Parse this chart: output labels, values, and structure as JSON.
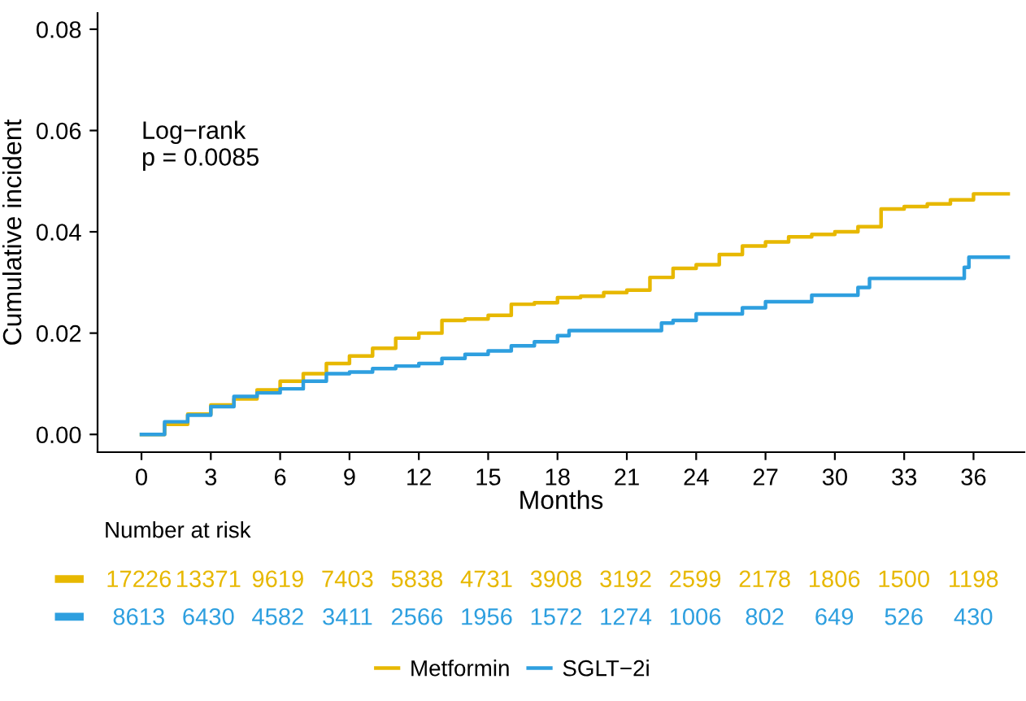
{
  "chart_data": [
    {
      "type": "step",
      "xlabel": "Months",
      "ylabel": "Cumulative incident",
      "xlim": [
        -1.9,
        38.2
      ],
      "ylim": [
        -0.0035,
        0.0832
      ],
      "xticks": [
        0,
        3,
        6,
        9,
        12,
        15,
        18,
        21,
        24,
        27,
        30,
        33,
        36
      ],
      "yticks": [
        {
          "value": 0,
          "label": "0.00"
        },
        {
          "value": 0.02,
          "label": "0.02"
        },
        {
          "value": 0.04,
          "label": "0.04"
        },
        {
          "value": 0.06,
          "label": "0.06"
        },
        {
          "value": 0.08,
          "label": "0.08"
        }
      ],
      "grid": false,
      "legend": "bottom",
      "annotations": [
        "Log−rank\np = 0.0085"
      ],
      "series": [
        {
          "name": "Metformin",
          "color": "#e7b800",
          "x": [
            0,
            1,
            2,
            3,
            4,
            5,
            6,
            7,
            8,
            9,
            10,
            11,
            12,
            13,
            14,
            15,
            16,
            17,
            18,
            19,
            20,
            21,
            22,
            23,
            24,
            25,
            26,
            27,
            28,
            29,
            30,
            31,
            32,
            33,
            34,
            35,
            36,
            37.5
          ],
          "values": [
            0,
            0.002,
            0.004,
            0.0058,
            0.007,
            0.0088,
            0.0105,
            0.012,
            0.014,
            0.0155,
            0.017,
            0.019,
            0.02,
            0.0225,
            0.0228,
            0.0235,
            0.0257,
            0.026,
            0.027,
            0.0273,
            0.028,
            0.0285,
            0.031,
            0.0328,
            0.0335,
            0.0355,
            0.0372,
            0.038,
            0.039,
            0.0395,
            0.04,
            0.041,
            0.0445,
            0.045,
            0.0455,
            0.0463,
            0.0475,
            0.0475
          ]
        },
        {
          "name": "SGLT−2i",
          "color": "#2e9fdf",
          "x": [
            0,
            1,
            2,
            3,
            4,
            5,
            6,
            7,
            8,
            9,
            10,
            11,
            12,
            13,
            14,
            15,
            16,
            17,
            18,
            18.5,
            22,
            22.5,
            23,
            24,
            26,
            27,
            29,
            31,
            31.5,
            35.5,
            35.6,
            35.8,
            37.5
          ],
          "values": [
            0,
            0.0025,
            0.0038,
            0.0055,
            0.0075,
            0.0082,
            0.009,
            0.0105,
            0.012,
            0.0123,
            0.013,
            0.0135,
            0.014,
            0.015,
            0.0158,
            0.0165,
            0.0175,
            0.0183,
            0.0195,
            0.0205,
            0.0205,
            0.022,
            0.0225,
            0.0238,
            0.025,
            0.0262,
            0.0275,
            0.029,
            0.0308,
            0.0308,
            0.033,
            0.035,
            0.035
          ]
        }
      ]
    },
    {
      "type": "heatmap",
      "title": "Number at risk",
      "data_labels": true,
      "categories": [
        null,
        null,
        null,
        null,
        null,
        null,
        null,
        null,
        null,
        null,
        null,
        null,
        null
      ],
      "y_categories": [
        null,
        null
      ],
      "colors": [
        "#e7b800",
        "#2e9fdf"
      ],
      "cells": [
        [
          17226,
          13371,
          9619,
          7403,
          5838,
          4731,
          3908,
          3192,
          2599,
          2178,
          1806,
          1500,
          1198
        ],
        [
          8613,
          6430,
          4582,
          3411,
          2566,
          1956,
          1572,
          1274,
          1006,
          802,
          649,
          526,
          430
        ]
      ]
    }
  ]
}
